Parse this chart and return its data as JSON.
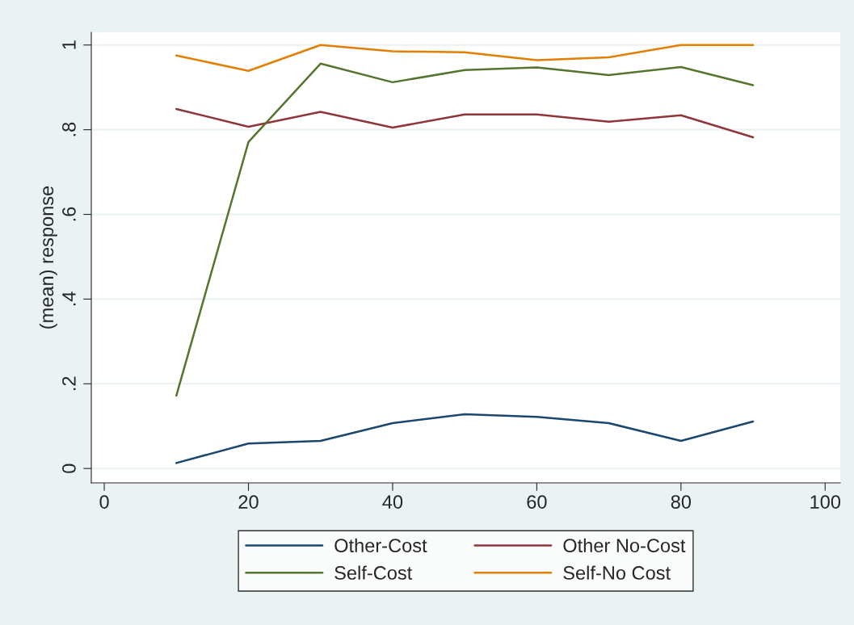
{
  "chart_data": {
    "type": "line",
    "ylabel": "(mean) response",
    "x": [
      10,
      20,
      30,
      40,
      50,
      60,
      70,
      80,
      90
    ],
    "series": [
      {
        "name": "Other-Cost",
        "color": "#1a476f",
        "values": [
          0.013,
          0.059,
          0.065,
          0.107,
          0.128,
          0.122,
          0.107,
          0.065,
          0.111
        ]
      },
      {
        "name": "Other No-Cost",
        "color": "#90353b",
        "values": [
          0.849,
          0.807,
          0.842,
          0.805,
          0.836,
          0.836,
          0.819,
          0.834,
          0.782
        ]
      },
      {
        "name": "Self-Cost",
        "color": "#55752f",
        "values": [
          0.172,
          0.771,
          0.956,
          0.912,
          0.941,
          0.947,
          0.929,
          0.948,
          0.905
        ]
      },
      {
        "name": "Self-No Cost",
        "color": "#e37e00",
        "values": [
          0.975,
          0.939,
          1.0,
          0.985,
          0.983,
          0.964,
          0.971,
          1.0,
          1.0
        ]
      }
    ],
    "xlim": [
      -1.8,
      102.1
    ],
    "xticks": [
      0,
      20,
      40,
      60,
      80,
      100
    ],
    "ylim": [
      -0.034,
      1.03
    ],
    "yticks": [
      {
        "value": 0,
        "label": "0"
      },
      {
        "value": 0.2,
        "label": ".2"
      },
      {
        "value": 0.4,
        "label": ".4"
      },
      {
        "value": 0.6,
        "label": ".6"
      },
      {
        "value": 0.8,
        "label": ".8"
      },
      {
        "value": 1,
        "label": "1"
      }
    ],
    "grid": "y",
    "legend": "bottom"
  }
}
